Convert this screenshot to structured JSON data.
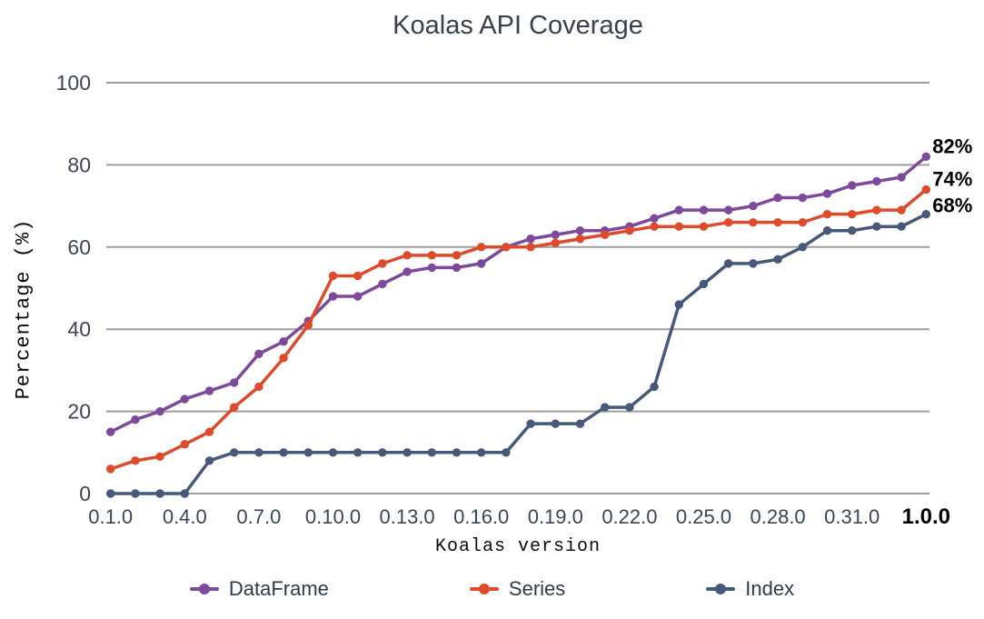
{
  "chart_data": {
    "type": "line",
    "title": "Koalas API Coverage",
    "xlabel": "Koalas version",
    "ylabel": "Percentage (%)",
    "ylim": [
      0,
      100
    ],
    "grid": true,
    "legend_position": "bottom",
    "y_ticks": [
      100,
      80,
      60,
      40,
      20,
      0
    ],
    "x": [
      "0.1.0",
      "0.2.0",
      "0.3.0",
      "0.4.0",
      "0.5.0",
      "0.6.0",
      "0.7.0",
      "0.8.0",
      "0.9.0",
      "0.10.0",
      "0.11.0",
      "0.12.0",
      "0.13.0",
      "0.14.0",
      "0.15.0",
      "0.16.0",
      "0.17.0",
      "0.18.0",
      "0.19.0",
      "0.20.0",
      "0.21.0",
      "0.22.0",
      "0.23.0",
      "0.24.0",
      "0.25.0",
      "0.26.0",
      "0.27.0",
      "0.28.0",
      "0.29.0",
      "0.30.0",
      "0.31.0",
      "0.32.0",
      "0.33.0",
      "1.0.0"
    ],
    "x_tick_labels": [
      "0.1.0",
      "0.4.0",
      "0.7.0",
      "0.10.0",
      "0.13.0",
      "0.16.0",
      "0.19.0",
      "0.22.0",
      "0.25.0",
      "0.28.0",
      "0.31.0",
      "1.0.0"
    ],
    "x_tick_every": 3,
    "series": [
      {
        "name": "DataFrame",
        "color": "#7d4a9b",
        "values": [
          15,
          18,
          20,
          23,
          25,
          27,
          34,
          37,
          42,
          48,
          48,
          51,
          54,
          55,
          55,
          56,
          60,
          62,
          63,
          64,
          64,
          65,
          67,
          69,
          69,
          69,
          70,
          72,
          72,
          73,
          75,
          76,
          77,
          82
        ]
      },
      {
        "name": "Series",
        "color": "#dd4b2c",
        "values": [
          6,
          8,
          9,
          12,
          15,
          21,
          26,
          33,
          41,
          53,
          53,
          56,
          58,
          58,
          58,
          60,
          60,
          60,
          61,
          62,
          63,
          64,
          65,
          65,
          65,
          66,
          66,
          66,
          66,
          68,
          68,
          69,
          69,
          74
        ]
      },
      {
        "name": "Index",
        "color": "#47597a",
        "values": [
          0,
          0,
          0,
          0,
          8,
          10,
          10,
          10,
          10,
          10,
          10,
          10,
          10,
          10,
          10,
          10,
          10,
          17,
          17,
          17,
          21,
          21,
          26,
          46,
          51,
          56,
          56,
          57,
          60,
          64,
          64,
          65,
          65,
          68
        ]
      }
    ],
    "annotations": [
      {
        "series": "DataFrame",
        "text": "82%"
      },
      {
        "series": "Series",
        "text": "74%"
      },
      {
        "series": "Index",
        "text": "68%"
      }
    ],
    "style": {
      "grid_color": "#9e9e9e",
      "tick_label_color": "#3a4653",
      "title_color": "#37424e",
      "annotation_color": "#000000",
      "final_tick_label_color": "#000000"
    }
  }
}
